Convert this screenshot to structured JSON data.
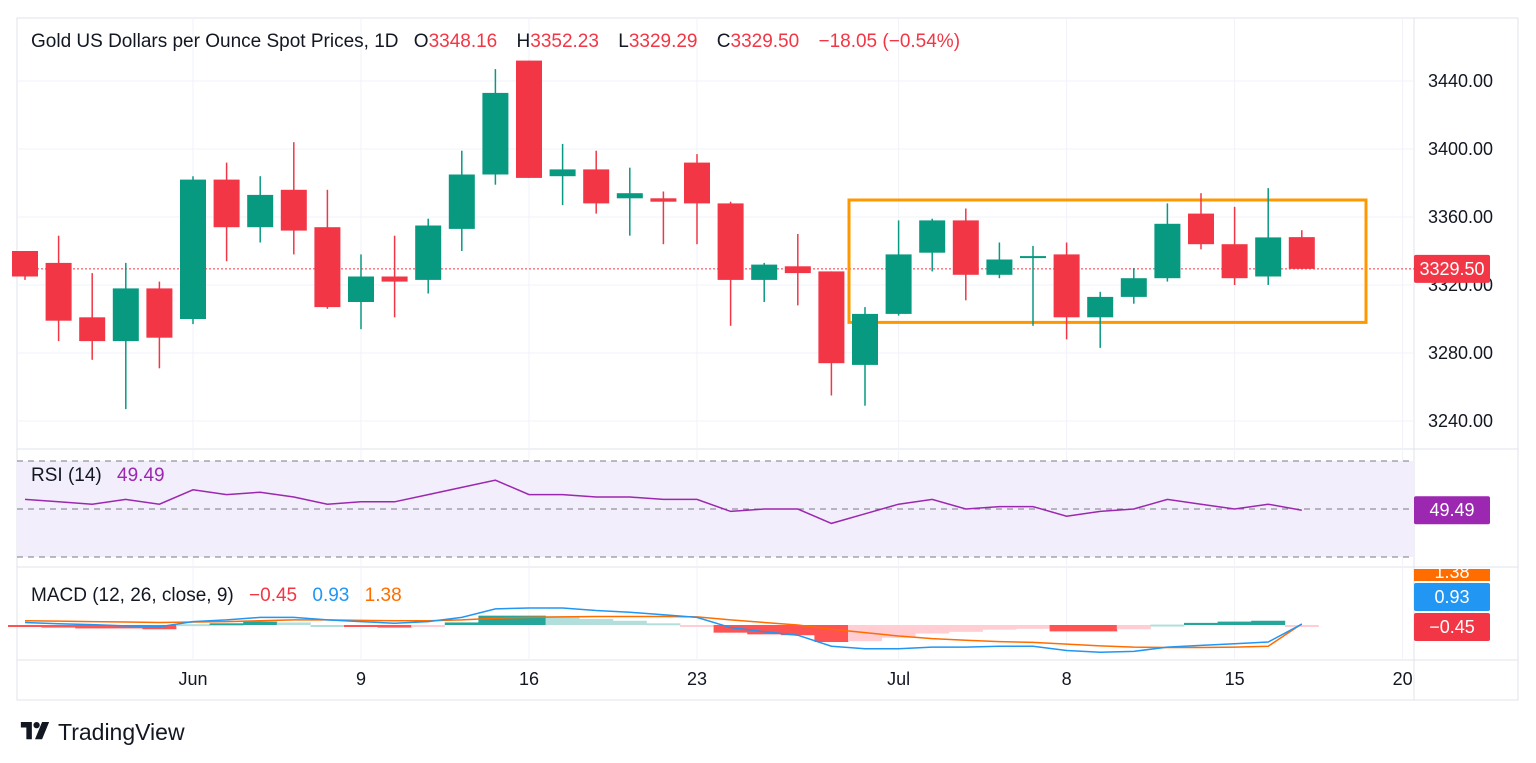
{
  "header": {
    "symbol": "Gold US Dollars per Ounce Spot Prices, 1D",
    "o_label": "O",
    "o_value": "3348.16",
    "h_label": "H",
    "h_value": "3352.23",
    "l_label": "L",
    "l_value": "3329.29",
    "c_label": "C",
    "c_value": "3329.50",
    "change": "−18.05 (−0.54%)"
  },
  "rsi": {
    "label": "RSI (14)",
    "value": "49.49"
  },
  "macd": {
    "label": "MACD (12, 26, close, 9)",
    "histogram": "−0.45",
    "macd": "0.93",
    "signal": "1.38",
    "signal_tag_partial": "1.38"
  },
  "brand": {
    "name": "TradingView",
    "logo_icon": "tradingview-logo-icon"
  },
  "colors": {
    "up": "#089981",
    "down": "#f23645",
    "rsi": "#9c27b0",
    "macd": "#2196f3",
    "signal": "#ff6d00",
    "box": "#ff9800",
    "rsi_band": "#f2eefb",
    "hist_up_strong": "#26a69a",
    "hist_up_weak": "#b2dfdb",
    "hist_down_strong": "#ff5252",
    "hist_down_weak": "#ffcdd2"
  },
  "chart_data": {
    "type": "candlestick",
    "title": "Gold US Dollars per Ounce Spot Prices, 1D",
    "ylim": [
      3224,
      3470
    ],
    "price_ticks": [
      "3440.00",
      "3400.00",
      "3360.00",
      "3320.00",
      "3280.00",
      "3240.00"
    ],
    "last_price": "3329.50",
    "x_tick_labels": [
      {
        "label": "Jun",
        "index": 5
      },
      {
        "label": "9",
        "index": 10
      },
      {
        "label": "16",
        "index": 15
      },
      {
        "label": "23",
        "index": 20
      },
      {
        "label": "Jul",
        "index": 26
      },
      {
        "label": "8",
        "index": 31
      },
      {
        "label": "15",
        "index": 36
      },
      {
        "label": "20",
        "index": 41
      }
    ],
    "candles": [
      {
        "o": 3340,
        "h": 3340,
        "l": 3323,
        "c": 3325
      },
      {
        "o": 3333,
        "h": 3349,
        "l": 3287,
        "c": 3299
      },
      {
        "o": 3301,
        "h": 3327,
        "l": 3276,
        "c": 3287
      },
      {
        "o": 3287,
        "h": 3333,
        "l": 3247,
        "c": 3318
      },
      {
        "o": 3318,
        "h": 3322,
        "l": 3271,
        "c": 3289
      },
      {
        "o": 3300,
        "h": 3384,
        "l": 3297,
        "c": 3382
      },
      {
        "o": 3382,
        "h": 3392,
        "l": 3334,
        "c": 3354
      },
      {
        "o": 3354,
        "h": 3384,
        "l": 3345,
        "c": 3373
      },
      {
        "o": 3376,
        "h": 3404,
        "l": 3338,
        "c": 3352
      },
      {
        "o": 3354,
        "h": 3376,
        "l": 3306,
        "c": 3307
      },
      {
        "o": 3310,
        "h": 3338,
        "l": 3294,
        "c": 3325
      },
      {
        "o": 3325,
        "h": 3349,
        "l": 3301,
        "c": 3322
      },
      {
        "o": 3323,
        "h": 3359,
        "l": 3315,
        "c": 3355
      },
      {
        "o": 3353,
        "h": 3399,
        "l": 3340,
        "c": 3385
      },
      {
        "o": 3385,
        "h": 3447,
        "l": 3379,
        "c": 3433
      },
      {
        "o": 3452,
        "h": 3452,
        "l": 3383,
        "c": 3383
      },
      {
        "o": 3384,
        "h": 3403,
        "l": 3367,
        "c": 3388
      },
      {
        "o": 3388,
        "h": 3399,
        "l": 3362,
        "c": 3368
      },
      {
        "o": 3371,
        "h": 3389,
        "l": 3349,
        "c": 3374
      },
      {
        "o": 3371,
        "h": 3375,
        "l": 3344,
        "c": 3369
      },
      {
        "o": 3392,
        "h": 3397,
        "l": 3344,
        "c": 3368
      },
      {
        "o": 3368,
        "h": 3369,
        "l": 3296,
        "c": 3323
      },
      {
        "o": 3323,
        "h": 3333,
        "l": 3310,
        "c": 3332
      },
      {
        "o": 3331,
        "h": 3350,
        "l": 3308,
        "c": 3327
      },
      {
        "o": 3328,
        "h": 3328,
        "l": 3255,
        "c": 3274
      },
      {
        "o": 3273,
        "h": 3307,
        "l": 3249,
        "c": 3303
      },
      {
        "o": 3303,
        "h": 3358,
        "l": 3302,
        "c": 3338
      },
      {
        "o": 3339,
        "h": 3359,
        "l": 3328,
        "c": 3358
      },
      {
        "o": 3358,
        "h": 3365,
        "l": 3311,
        "c": 3326
      },
      {
        "o": 3326,
        "h": 3345,
        "l": 3324,
        "c": 3335
      },
      {
        "o": 3336,
        "h": 3343,
        "l": 3296,
        "c": 3337
      },
      {
        "o": 3338,
        "h": 3345,
        "l": 3288,
        "c": 3301
      },
      {
        "o": 3301,
        "h": 3316,
        "l": 3283,
        "c": 3313
      },
      {
        "o": 3313,
        "h": 3330,
        "l": 3309,
        "c": 3324
      },
      {
        "o": 3324,
        "h": 3368,
        "l": 3322,
        "c": 3356
      },
      {
        "o": 3362,
        "h": 3374,
        "l": 3341,
        "c": 3344
      },
      {
        "o": 3344,
        "h": 3366,
        "l": 3320,
        "c": 3324
      },
      {
        "o": 3325,
        "h": 3377,
        "l": 3320,
        "c": 3348
      },
      {
        "o": 3348.16,
        "h": 3352.23,
        "l": 3329.29,
        "c": 3329.5
      }
    ],
    "range_box": {
      "from_index": 25,
      "to_index": 40,
      "upper": 3370,
      "lower": 3298
    },
    "rsi": {
      "upper": 70,
      "middle": 50,
      "lower": 30,
      "values": [
        54,
        53,
        52,
        54,
        52,
        58,
        56,
        57,
        55,
        52,
        53,
        53,
        56,
        59,
        62,
        56,
        56,
        55,
        55,
        54,
        54,
        49,
        50,
        50,
        44,
        48,
        52,
        54,
        50,
        51,
        51,
        47,
        49,
        50,
        54,
        52,
        50,
        52,
        49.49
      ]
    },
    "macd": {
      "macd": [
        3,
        1.5,
        0.5,
        -1,
        -2,
        4,
        6,
        9,
        9,
        6,
        4,
        2,
        4,
        9,
        19,
        20,
        20,
        17,
        15,
        12,
        9,
        -3,
        -8,
        -12,
        -25,
        -28,
        -28,
        -26,
        -26,
        -25,
        -25,
        -30,
        -32,
        -31,
        -26,
        -24,
        -22,
        -20,
        0.93
      ],
      "signal": [
        5,
        4.5,
        4,
        3.5,
        3,
        3.5,
        4,
        5,
        6,
        6,
        5.5,
        5,
        5,
        6,
        8,
        9,
        9.5,
        10,
        10,
        10,
        9.5,
        6,
        3,
        0,
        -5,
        -9,
        -13,
        -16,
        -18,
        -19.5,
        -20.5,
        -22.5,
        -24.5,
        -26,
        -26.5,
        -26.5,
        -26,
        -25,
        1.38
      ],
      "histogram": [
        -2,
        -3,
        -4,
        -4,
        -5,
        1,
        2,
        4,
        3,
        0,
        -1.5,
        -3,
        -1,
        3,
        11,
        11,
        10.5,
        7,
        5,
        2,
        -0.5,
        -9,
        -11,
        -12,
        -20,
        -19,
        -15,
        -10,
        -8,
        -5.5,
        -4.5,
        -7.5,
        -7.5,
        -5,
        0.5,
        2.5,
        4,
        5,
        -0.45
      ]
    }
  }
}
